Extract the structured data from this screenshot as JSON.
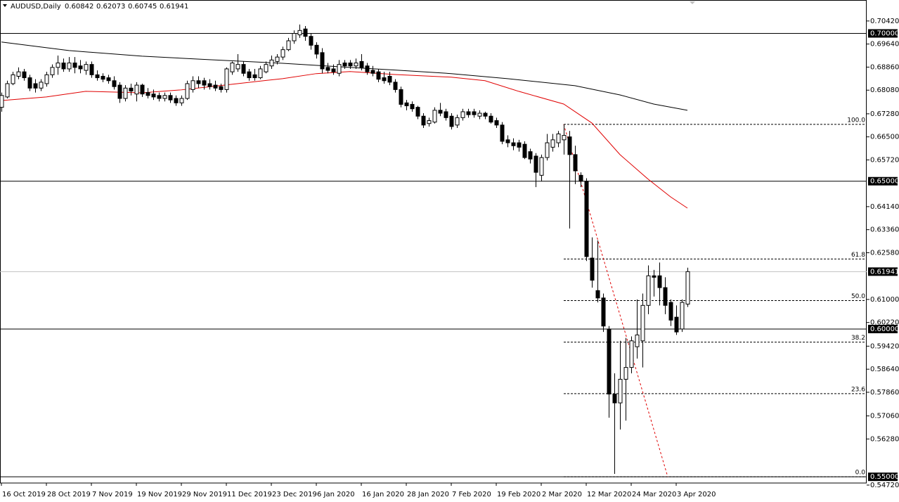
{
  "chart_data": {
    "type": "candlestick",
    "symbol": "AUDUSD,Daily",
    "ohlc_header": [
      0.60842,
      0.62073,
      0.60745,
      0.61941
    ],
    "categories": [
      "16 Oct 2019",
      null,
      null,
      null,
      null,
      null,
      null,
      null,
      "28 Oct 2019",
      null,
      null,
      null,
      null,
      null,
      null,
      null,
      "7 Nov 2019",
      null,
      null,
      null,
      null,
      null,
      null,
      null,
      "19 Nov 2019",
      null,
      null,
      null,
      null,
      null,
      null,
      null,
      "29 Nov 2019",
      null,
      null,
      null,
      null,
      null,
      null,
      null,
      "11 Dec 2019",
      null,
      null,
      null,
      null,
      null,
      null,
      null,
      "23 Dec 2019",
      null,
      null,
      null,
      null,
      null,
      null,
      null,
      "6 Jan 2020",
      null,
      null,
      null,
      null,
      null,
      null,
      null,
      "16 Jan 2020",
      null,
      null,
      null,
      null,
      null,
      null,
      null,
      "28 Jan 2020",
      null,
      null,
      null,
      null,
      null,
      null,
      null,
      "7 Feb 2020",
      null,
      null,
      null,
      null,
      null,
      null,
      null,
      "19 Feb 2020",
      null,
      null,
      null,
      null,
      null,
      null,
      null,
      "2 Mar 2020",
      null,
      null,
      null,
      null,
      null,
      null,
      null,
      "12 Mar 2020",
      null,
      null,
      null,
      null,
      null,
      null,
      null,
      "24 Mar 2020",
      null,
      null,
      null,
      null,
      null,
      null,
      null,
      "3 Apr 2020",
      null,
      null
    ],
    "open": [
      0.675,
      0.6785,
      0.683,
      0.6855,
      0.687,
      0.685,
      0.683,
      0.6815,
      0.683,
      0.686,
      0.6885,
      0.69,
      0.688,
      0.69,
      0.689,
      0.6875,
      0.6895,
      0.686,
      0.6855,
      0.685,
      0.684,
      0.6825,
      0.678,
      0.6815,
      0.6795,
      0.6825,
      0.68,
      0.6795,
      0.679,
      0.678,
      0.679,
      0.678,
      0.6765,
      0.678,
      0.681,
      0.684,
      0.684,
      0.683,
      0.6825,
      0.682,
      0.681,
      0.687,
      0.688,
      0.6895,
      0.687,
      0.686,
      0.685,
      0.687,
      0.689,
      0.6905,
      0.692,
      0.6945,
      0.6975,
      0.6995,
      0.7015,
      0.699,
      0.696,
      0.6935,
      0.6885,
      0.688,
      0.6865,
      0.69,
      0.69,
      0.689,
      0.6905,
      0.689,
      0.6875,
      0.687,
      0.685,
      0.6855,
      0.6835,
      0.681,
      0.6765,
      0.676,
      0.675,
      0.672,
      0.6695,
      0.67,
      0.674,
      0.6735,
      0.672,
      0.669,
      0.6715,
      0.6735,
      0.6735,
      0.672,
      0.673,
      0.672,
      0.6705,
      0.669,
      0.664,
      0.663,
      0.663,
      0.6625,
      0.66,
      0.6585,
      0.652,
      0.658,
      0.6615,
      0.663,
      0.664,
      0.665,
      0.659,
      0.652,
      0.65,
      0.624,
      0.613,
      0.6105,
      0.6,
      0.578,
      0.575,
      0.583,
      0.587,
      0.594,
      0.596,
      0.608,
      0.618,
      0.618,
      0.614,
      0.609,
      0.604,
      0.6,
      0.60842
    ],
    "high": [
      0.68,
      0.684,
      0.687,
      0.6885,
      0.688,
      0.686,
      0.6845,
      0.6845,
      0.687,
      0.6895,
      0.6925,
      0.6915,
      0.692,
      0.692,
      0.691,
      0.6905,
      0.6905,
      0.6875,
      0.6865,
      0.686,
      0.6855,
      0.6835,
      0.6825,
      0.683,
      0.6835,
      0.683,
      0.6815,
      0.681,
      0.68,
      0.68,
      0.68,
      0.679,
      0.679,
      0.684,
      0.6855,
      0.6855,
      0.685,
      0.6845,
      0.684,
      0.683,
      0.6885,
      0.6905,
      0.693,
      0.6905,
      0.688,
      0.688,
      0.689,
      0.6905,
      0.6925,
      0.693,
      0.6955,
      0.6985,
      0.701,
      0.703,
      0.7025,
      0.7,
      0.697,
      0.695,
      0.69,
      0.6895,
      0.691,
      0.691,
      0.691,
      0.6915,
      0.693,
      0.69,
      0.689,
      0.688,
      0.687,
      0.687,
      0.6845,
      0.682,
      0.6775,
      0.677,
      0.6755,
      0.673,
      0.6715,
      0.675,
      0.6765,
      0.6745,
      0.673,
      0.6725,
      0.6745,
      0.6745,
      0.6745,
      0.674,
      0.6735,
      0.673,
      0.6715,
      0.67,
      0.6655,
      0.6645,
      0.664,
      0.6635,
      0.661,
      0.6595,
      0.659,
      0.666,
      0.666,
      0.667,
      0.6692,
      0.667,
      0.662,
      0.653,
      0.651,
      0.631,
      0.63,
      0.612,
      0.601,
      0.585,
      0.596,
      0.597,
      0.5975,
      0.61,
      0.612,
      0.6215,
      0.62,
      0.6225,
      0.6175,
      0.61,
      0.608,
      0.61,
      0.62073
    ],
    "low": [
      0.6735,
      0.678,
      0.6825,
      0.6845,
      0.684,
      0.6805,
      0.68,
      0.6805,
      0.682,
      0.685,
      0.686,
      0.687,
      0.687,
      0.6865,
      0.6865,
      0.686,
      0.685,
      0.684,
      0.6835,
      0.683,
      0.681,
      0.6765,
      0.677,
      0.679,
      0.677,
      0.6785,
      0.678,
      0.6775,
      0.677,
      0.677,
      0.6765,
      0.6755,
      0.6755,
      0.6775,
      0.68,
      0.6815,
      0.681,
      0.681,
      0.6805,
      0.68,
      0.68,
      0.686,
      0.687,
      0.6855,
      0.684,
      0.684,
      0.6845,
      0.6865,
      0.688,
      0.6895,
      0.691,
      0.694,
      0.6965,
      0.6985,
      0.6975,
      0.6945,
      0.6915,
      0.6865,
      0.6865,
      0.686,
      0.6855,
      0.688,
      0.688,
      0.688,
      0.6875,
      0.686,
      0.6855,
      0.6835,
      0.683,
      0.6825,
      0.68,
      0.675,
      0.674,
      0.6735,
      0.671,
      0.668,
      0.6685,
      0.6695,
      0.672,
      0.6705,
      0.6675,
      0.668,
      0.6705,
      0.6715,
      0.6715,
      0.671,
      0.671,
      0.6695,
      0.668,
      0.6625,
      0.6615,
      0.6605,
      0.66,
      0.6575,
      0.656,
      0.648,
      0.65,
      0.657,
      0.66,
      0.6615,
      0.659,
      0.634,
      0.649,
      0.648,
      0.623,
      0.614,
      0.609,
      0.599,
      0.57,
      0.551,
      0.566,
      0.569,
      0.585,
      0.59,
      0.587,
      0.605,
      0.611,
      0.608,
      0.605,
      0.601,
      0.598,
      0.599,
      0.60745
    ],
    "close": [
      0.679,
      0.683,
      0.686,
      0.687,
      0.685,
      0.6815,
      0.6815,
      0.6835,
      0.686,
      0.6885,
      0.69,
      0.688,
      0.69,
      0.6885,
      0.688,
      0.6895,
      0.686,
      0.685,
      0.6845,
      0.684,
      0.682,
      0.678,
      0.6815,
      0.6805,
      0.6825,
      0.6795,
      0.679,
      0.6785,
      0.678,
      0.679,
      0.6775,
      0.6765,
      0.678,
      0.683,
      0.684,
      0.683,
      0.6825,
      0.682,
      0.6815,
      0.681,
      0.688,
      0.69,
      0.6895,
      0.6865,
      0.685,
      0.685,
      0.688,
      0.6895,
      0.691,
      0.692,
      0.6945,
      0.6975,
      0.7,
      0.701,
      0.699,
      0.696,
      0.693,
      0.688,
      0.6875,
      0.687,
      0.6895,
      0.689,
      0.689,
      0.69,
      0.6885,
      0.687,
      0.6865,
      0.6845,
      0.684,
      0.6835,
      0.681,
      0.676,
      0.6755,
      0.6745,
      0.672,
      0.669,
      0.6705,
      0.674,
      0.673,
      0.6715,
      0.6685,
      0.6715,
      0.6735,
      0.6725,
      0.6725,
      0.673,
      0.672,
      0.67,
      0.669,
      0.6635,
      0.663,
      0.662,
      0.6615,
      0.658,
      0.6575,
      0.653,
      0.658,
      0.663,
      0.664,
      0.666,
      0.6655,
      0.659,
      0.6535,
      0.65,
      0.6245,
      0.6165,
      0.6105,
      0.601,
      0.578,
      0.575,
      0.583,
      0.587,
      0.596,
      0.598,
      0.608,
      0.618,
      0.6175,
      0.614,
      0.608,
      0.603,
      0.599,
      0.609,
      0.61941
    ],
    "moving_averages": [
      {
        "color": "#000000",
        "x": [
          0,
          12,
          25,
          37,
          50,
          62,
          70,
          80,
          90,
          102,
          110,
          116,
          122
        ],
        "values": [
          0.6971,
          0.6942,
          0.6923,
          0.6911,
          0.6899,
          0.6885,
          0.6876,
          0.6864,
          0.6847,
          0.6823,
          0.6792,
          0.6761,
          0.674
        ]
      },
      {
        "color": "#e00000",
        "x": [
          0,
          8,
          15,
          25,
          32,
          41,
          50,
          56,
          62,
          70,
          80,
          86,
          92,
          100,
          105,
          110,
          115,
          119,
          122
        ],
        "values": [
          0.6773,
          0.6785,
          0.6804,
          0.6799,
          0.6809,
          0.6828,
          0.6847,
          0.6864,
          0.6871,
          0.6861,
          0.6852,
          0.684,
          0.6804,
          0.6761,
          0.6697,
          0.659,
          0.6507,
          0.6447,
          0.6409
        ]
      }
    ],
    "levels": [
      {
        "value": 0.7,
        "label": "0.70000"
      },
      {
        "value": 0.65,
        "label": "0.65000"
      },
      {
        "value": 0.6,
        "label": "0.60000"
      },
      {
        "value": 0.55,
        "label": "0.55000"
      }
    ],
    "price_line": {
      "value": 0.61941,
      "label": "0.61941",
      "color": "#c0c0c0"
    },
    "fibonacci": {
      "high": 0.66923,
      "low": 0.55,
      "x": [
        100,
        118.5
      ],
      "color": "#e00000",
      "levels": [
        100,
        61.8,
        50,
        38.2,
        23.6,
        0
      ],
      "level_labels": [
        "100.0",
        "61.8",
        "50.0",
        "38.2",
        "23.6",
        "0.0"
      ]
    },
    "ylim": [
      0.5479,
      0.7113
    ],
    "yticks": [
      {
        "value": 0.7042,
        "label": "0.70420"
      },
      {
        "value": 0.6964,
        "label": "0.69640"
      },
      {
        "value": 0.6886,
        "label": "0.68860"
      },
      {
        "value": 0.6808,
        "label": "0.68080"
      },
      {
        "value": 0.6728,
        "label": "0.67280"
      },
      {
        "value": 0.665,
        "label": "0.66500"
      },
      {
        "value": 0.6572,
        "label": "0.65720"
      },
      {
        "value": 0.6414,
        "label": "0.64140"
      },
      {
        "value": 0.6336,
        "label": "0.63360"
      },
      {
        "value": 0.6258,
        "label": "0.62580"
      },
      {
        "value": 0.61,
        "label": "0.61000"
      },
      {
        "value": 0.6022,
        "label": "0.60220"
      },
      {
        "value": 0.5942,
        "label": "0.59420"
      },
      {
        "value": 0.5864,
        "label": "0.58640"
      },
      {
        "value": 0.5786,
        "label": "0.57860"
      },
      {
        "value": 0.5706,
        "label": "0.57060"
      },
      {
        "value": 0.5628,
        "label": "0.56280"
      },
      {
        "value": 0.5472,
        "label": "0.54720"
      }
    ]
  }
}
